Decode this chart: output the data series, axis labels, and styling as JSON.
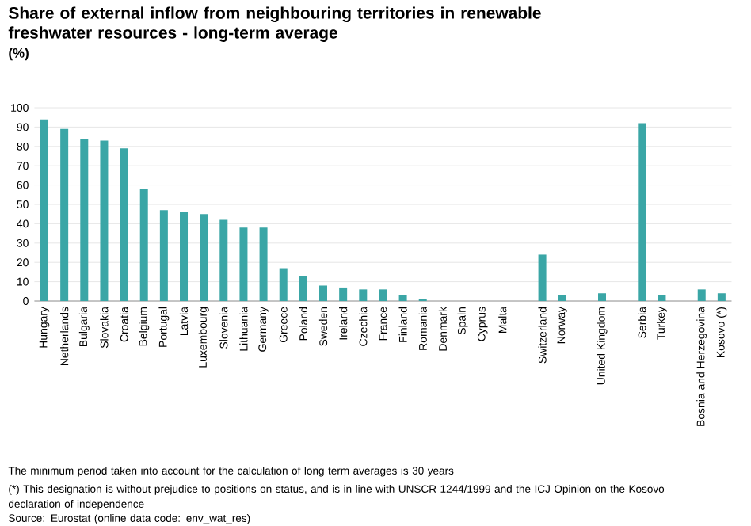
{
  "chart_data": {
    "type": "bar",
    "title": "Share of external inflow from neighbouring territories in renewable freshwater resources - long-term average",
    "ylabel": "(%)",
    "categories": [
      "Hungary",
      "Netherlands",
      "Bulgaria",
      "Slovakia",
      "Croatia",
      "Belgium",
      "Portugal",
      "Latvia",
      "Luxembourg",
      "Slovenia",
      "Lithuania",
      "Germany",
      "Greece",
      "Poland",
      "Sweden",
      "Ireland",
      "Czechia",
      "France",
      "Finland",
      "Romania",
      "Denmark",
      "Spain",
      "Cyprus",
      "Malta",
      null,
      "Switzerland",
      "Norway",
      null,
      "United Kingdom",
      null,
      "Serbia",
      "Turkey",
      null,
      "Bosnia and Herzegovina",
      "Kosovo (*)"
    ],
    "values": [
      94,
      89,
      84,
      83,
      79,
      58,
      47,
      46,
      45,
      42,
      38,
      38,
      17,
      13,
      8,
      7,
      6,
      6,
      3,
      1,
      0,
      0,
      0,
      0,
      null,
      24,
      3,
      null,
      4,
      null,
      92,
      3,
      null,
      6,
      4
    ],
    "color": "#3aa6a6",
    "ylim": [
      0,
      100
    ],
    "yticks": [
      0,
      10,
      20,
      30,
      40,
      50,
      60,
      70,
      80,
      90,
      100
    ],
    "grid": "y",
    "annotations": [
      "The minimum period taken into account for the calculation of long term averages is 30 years",
      "(*) This designation is without prejudice to positions on status, and is in line with UNSCR 1244/1999 and the ICJ Opinion on the Kosovo declaration of independence",
      "Source: Eurostat (online data code: env_wat_res)"
    ]
  }
}
